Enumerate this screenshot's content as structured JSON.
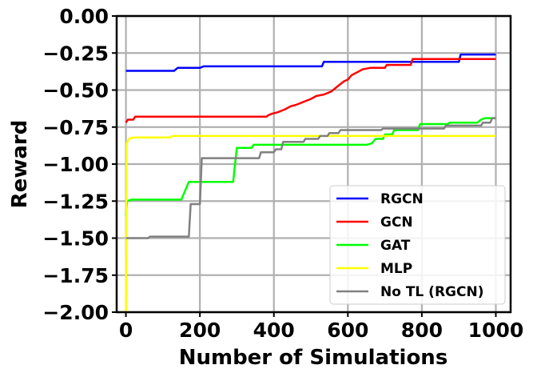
{
  "chart_data": {
    "type": "line",
    "title": "",
    "xlabel": "Number of Simulations",
    "ylabel": "Reward",
    "xlim": [
      -25,
      1040
    ],
    "ylim": [
      -2.0,
      0.0
    ],
    "xticks": [
      0,
      200,
      400,
      600,
      800,
      1000
    ],
    "yticks": [
      0.0,
      -0.25,
      -0.5,
      -0.75,
      -1.0,
      -1.25,
      -1.5,
      -1.75,
      -2.0
    ],
    "xtick_labels": [
      "0",
      "200",
      "400",
      "600",
      "800",
      "1000"
    ],
    "ytick_labels": [
      "0.00",
      "−0.25",
      "−0.50",
      "−0.75",
      "−1.00",
      "−1.25",
      "−1.50",
      "−1.75",
      "−2.00"
    ],
    "grid": true,
    "legend_position": "lower-right",
    "series": [
      {
        "name": "RGCN",
        "color": "#0000ff",
        "points": [
          [
            0,
            -0.37
          ],
          [
            130,
            -0.37
          ],
          [
            140,
            -0.35
          ],
          [
            200,
            -0.35
          ],
          [
            210,
            -0.34
          ],
          [
            530,
            -0.34
          ],
          [
            535,
            -0.31
          ],
          [
            900,
            -0.31
          ],
          [
            905,
            -0.26
          ],
          [
            1000,
            -0.26
          ]
        ]
      },
      {
        "name": "GCN",
        "color": "#ff0000",
        "points": [
          [
            0,
            -0.72
          ],
          [
            5,
            -0.7
          ],
          [
            20,
            -0.7
          ],
          [
            25,
            -0.68
          ],
          [
            380,
            -0.68
          ],
          [
            385,
            -0.67
          ],
          [
            395,
            -0.66
          ],
          [
            410,
            -0.65
          ],
          [
            430,
            -0.63
          ],
          [
            445,
            -0.61
          ],
          [
            460,
            -0.6
          ],
          [
            480,
            -0.58
          ],
          [
            500,
            -0.56
          ],
          [
            515,
            -0.54
          ],
          [
            535,
            -0.53
          ],
          [
            555,
            -0.51
          ],
          [
            575,
            -0.47
          ],
          [
            590,
            -0.44
          ],
          [
            600,
            -0.43
          ],
          [
            610,
            -0.4
          ],
          [
            625,
            -0.38
          ],
          [
            640,
            -0.36
          ],
          [
            660,
            -0.35
          ],
          [
            700,
            -0.35
          ],
          [
            705,
            -0.33
          ],
          [
            770,
            -0.33
          ],
          [
            775,
            -0.29
          ],
          [
            1000,
            -0.29
          ]
        ]
      },
      {
        "name": "GAT",
        "color": "#00ff00",
        "points": [
          [
            0,
            -1.35
          ],
          [
            3,
            -1.25
          ],
          [
            15,
            -1.24
          ],
          [
            150,
            -1.24
          ],
          [
            160,
            -1.18
          ],
          [
            170,
            -1.12
          ],
          [
            290,
            -1.12
          ],
          [
            295,
            -1.0
          ],
          [
            300,
            -0.89
          ],
          [
            340,
            -0.89
          ],
          [
            345,
            -0.87
          ],
          [
            650,
            -0.87
          ],
          [
            665,
            -0.86
          ],
          [
            675,
            -0.83
          ],
          [
            695,
            -0.83
          ],
          [
            700,
            -0.8
          ],
          [
            720,
            -0.8
          ],
          [
            725,
            -0.77
          ],
          [
            790,
            -0.77
          ],
          [
            795,
            -0.73
          ],
          [
            870,
            -0.73
          ],
          [
            875,
            -0.72
          ],
          [
            950,
            -0.72
          ],
          [
            960,
            -0.7
          ],
          [
            970,
            -0.69
          ],
          [
            1000,
            -0.69
          ]
        ]
      },
      {
        "name": "MLP",
        "color": "#ffff00",
        "points": [
          [
            0,
            -2.0
          ],
          [
            2,
            -0.86
          ],
          [
            8,
            -0.83
          ],
          [
            20,
            -0.82
          ],
          [
            120,
            -0.82
          ],
          [
            125,
            -0.81
          ],
          [
            1000,
            -0.81
          ]
        ]
      },
      {
        "name": "No TL (RGCN)",
        "color": "#808080",
        "points": [
          [
            0,
            -1.5
          ],
          [
            60,
            -1.5
          ],
          [
            65,
            -1.49
          ],
          [
            170,
            -1.49
          ],
          [
            175,
            -1.27
          ],
          [
            200,
            -1.27
          ],
          [
            205,
            -0.96
          ],
          [
            360,
            -0.96
          ],
          [
            365,
            -0.92
          ],
          [
            400,
            -0.92
          ],
          [
            405,
            -0.9
          ],
          [
            420,
            -0.9
          ],
          [
            425,
            -0.85
          ],
          [
            480,
            -0.85
          ],
          [
            485,
            -0.83
          ],
          [
            520,
            -0.83
          ],
          [
            525,
            -0.81
          ],
          [
            545,
            -0.81
          ],
          [
            550,
            -0.79
          ],
          [
            575,
            -0.79
          ],
          [
            580,
            -0.77
          ],
          [
            690,
            -0.77
          ],
          [
            695,
            -0.76
          ],
          [
            860,
            -0.76
          ],
          [
            865,
            -0.74
          ],
          [
            960,
            -0.74
          ],
          [
            965,
            -0.72
          ],
          [
            985,
            -0.72
          ],
          [
            990,
            -0.69
          ],
          [
            1000,
            -0.69
          ]
        ]
      }
    ]
  }
}
